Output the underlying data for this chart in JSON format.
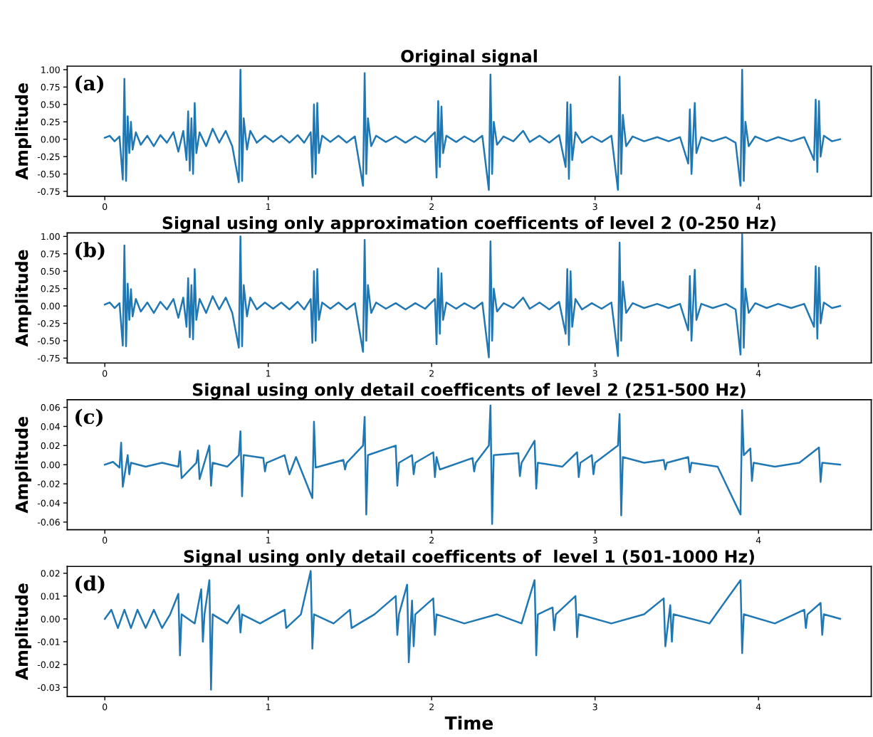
{
  "chart_data": [
    {
      "type": "line",
      "title": "Original signal",
      "ylabel": "Amplitude",
      "annotations": [
        "(a)"
      ],
      "xlim": [
        -0.23,
        4.69
      ],
      "xticks": [
        0,
        1,
        2,
        3,
        4
      ],
      "ylim": [
        -0.82,
        1.05
      ],
      "yticks": [
        {
          "value": -0.75,
          "label": "-0.75"
        },
        {
          "value": -0.5,
          "label": "-0.50"
        },
        {
          "value": -0.25,
          "label": "-0.25"
        },
        {
          "value": 0,
          "label": "0.00"
        },
        {
          "value": 0.25,
          "label": "0.25"
        },
        {
          "value": 0.5,
          "label": "0.50"
        },
        {
          "value": 0.75,
          "label": "0.75"
        },
        {
          "value": 1,
          "label": "1.00"
        }
      ],
      "series": [
        {
          "color": "#1f77b4",
          "x": [
            0,
            0.03,
            0.06,
            0.09,
            0.11,
            0.12,
            0.13,
            0.14,
            0.15,
            0.16,
            0.17,
            0.19,
            0.22,
            0.26,
            0.3,
            0.34,
            0.38,
            0.42,
            0.45,
            0.48,
            0.5,
            0.51,
            0.52,
            0.53,
            0.54,
            0.55,
            0.56,
            0.58,
            0.62,
            0.66,
            0.7,
            0.74,
            0.78,
            0.82,
            0.83,
            0.84,
            0.85,
            0.87,
            0.89,
            0.93,
            0.98,
            1.03,
            1.08,
            1.13,
            1.18,
            1.22,
            1.26,
            1.27,
            1.28,
            1.29,
            1.3,
            1.31,
            1.33,
            1.38,
            1.43,
            1.48,
            1.53,
            1.58,
            1.59,
            1.6,
            1.61,
            1.63,
            1.66,
            1.72,
            1.78,
            1.84,
            1.9,
            1.96,
            2.02,
            2.03,
            2.04,
            2.05,
            2.06,
            2.07,
            2.09,
            2.15,
            2.2,
            2.26,
            2.31,
            2.35,
            2.36,
            2.37,
            2.38,
            2.4,
            2.44,
            2.5,
            2.56,
            2.6,
            2.66,
            2.72,
            2.78,
            2.82,
            2.83,
            2.84,
            2.85,
            2.86,
            2.88,
            2.92,
            2.98,
            3.04,
            3.1,
            3.14,
            3.15,
            3.16,
            3.17,
            3.19,
            3.23,
            3.3,
            3.38,
            3.45,
            3.52,
            3.57,
            3.58,
            3.59,
            3.61,
            3.62,
            3.65,
            3.72,
            3.8,
            3.86,
            3.89,
            3.9,
            3.91,
            3.92,
            3.94,
            3.98,
            4.05,
            4.12,
            4.2,
            4.28,
            4.34,
            4.35,
            4.36,
            4.37,
            4.38,
            4.4,
            4.45,
            4.5
          ],
          "values": [
            0.02,
            0.05,
            -0.03,
            0.04,
            -0.58,
            0.87,
            -0.6,
            0.33,
            -0.2,
            0.25,
            -0.15,
            0.1,
            -0.08,
            0.05,
            -0.1,
            0.06,
            -0.05,
            0.1,
            -0.18,
            0.12,
            -0.3,
            0.4,
            -0.45,
            0.3,
            -0.5,
            0.52,
            -0.2,
            0.1,
            -0.1,
            0.15,
            -0.05,
            0.12,
            -0.1,
            -0.62,
            1.0,
            -0.6,
            0.3,
            -0.15,
            0.12,
            -0.05,
            0.05,
            -0.04,
            0.05,
            -0.05,
            0.06,
            -0.05,
            0.1,
            -0.55,
            0.5,
            -0.5,
            0.52,
            -0.2,
            0.05,
            -0.04,
            0.05,
            -0.05,
            0.04,
            -0.67,
            0.95,
            -0.5,
            0.3,
            -0.1,
            0.05,
            -0.04,
            0.04,
            -0.05,
            0.04,
            -0.04,
            0.1,
            -0.55,
            0.55,
            -0.4,
            0.47,
            -0.2,
            0.05,
            -0.04,
            0.04,
            -0.04,
            0.05,
            -0.73,
            0.93,
            -0.5,
            0.25,
            -0.08,
            0.04,
            -0.03,
            0.12,
            -0.04,
            0.05,
            -0.05,
            0.06,
            -0.4,
            0.53,
            -0.57,
            0.5,
            -0.3,
            0.1,
            -0.05,
            0.04,
            -0.04,
            0.05,
            -0.73,
            0.9,
            -0.5,
            0.35,
            -0.1,
            0.04,
            -0.03,
            0.03,
            -0.03,
            0.03,
            -0.35,
            0.43,
            -0.5,
            0.52,
            -0.2,
            0.03,
            -0.03,
            0.03,
            -0.05,
            -0.67,
            1.0,
            -0.6,
            0.25,
            -0.1,
            0.04,
            -0.03,
            0.03,
            -0.03,
            0.03,
            -0.3,
            0.57,
            -0.47,
            0.55,
            -0.25,
            0.05,
            -0.03,
            0.0
          ]
        }
      ]
    },
    {
      "type": "line",
      "title": "Signal using only approximation coefficents of level 2 (0-250 Hz)",
      "ylabel": "Amplitude",
      "annotations": [
        "(b)"
      ],
      "xlim": [
        -0.23,
        4.69
      ],
      "xticks": [
        0,
        1,
        2,
        3,
        4
      ],
      "ylim": [
        -0.82,
        1.05
      ],
      "yticks": [
        {
          "value": -0.75,
          "label": "-0.75"
        },
        {
          "value": -0.5,
          "label": "-0.50"
        },
        {
          "value": -0.25,
          "label": "-0.25"
        },
        {
          "value": 0,
          "label": "0.00"
        },
        {
          "value": 0.25,
          "label": "0.25"
        },
        {
          "value": 0.5,
          "label": "0.50"
        },
        {
          "value": 0.75,
          "label": "0.75"
        },
        {
          "value": 1,
          "label": "1.00"
        }
      ],
      "series": [
        {
          "color": "#1f77b4",
          "x": [
            0,
            0.03,
            0.06,
            0.09,
            0.11,
            0.12,
            0.13,
            0.14,
            0.15,
            0.16,
            0.17,
            0.19,
            0.22,
            0.26,
            0.3,
            0.34,
            0.38,
            0.42,
            0.45,
            0.48,
            0.5,
            0.51,
            0.52,
            0.53,
            0.54,
            0.55,
            0.56,
            0.58,
            0.62,
            0.66,
            0.7,
            0.74,
            0.78,
            0.82,
            0.83,
            0.84,
            0.85,
            0.87,
            0.89,
            0.93,
            0.98,
            1.03,
            1.08,
            1.13,
            1.18,
            1.22,
            1.26,
            1.27,
            1.28,
            1.29,
            1.3,
            1.31,
            1.33,
            1.38,
            1.43,
            1.48,
            1.53,
            1.58,
            1.59,
            1.6,
            1.61,
            1.63,
            1.66,
            1.72,
            1.78,
            1.84,
            1.9,
            1.96,
            2.02,
            2.03,
            2.04,
            2.05,
            2.06,
            2.07,
            2.09,
            2.15,
            2.2,
            2.26,
            2.31,
            2.35,
            2.36,
            2.37,
            2.38,
            2.4,
            2.44,
            2.5,
            2.56,
            2.6,
            2.66,
            2.72,
            2.78,
            2.82,
            2.83,
            2.84,
            2.85,
            2.86,
            2.88,
            2.92,
            2.98,
            3.04,
            3.1,
            3.14,
            3.15,
            3.16,
            3.17,
            3.19,
            3.23,
            3.3,
            3.38,
            3.45,
            3.52,
            3.57,
            3.58,
            3.59,
            3.61,
            3.62,
            3.65,
            3.72,
            3.8,
            3.86,
            3.89,
            3.9,
            3.91,
            3.92,
            3.94,
            3.98,
            4.05,
            4.12,
            4.2,
            4.28,
            4.34,
            4.35,
            4.36,
            4.37,
            4.38,
            4.4,
            4.45,
            4.5
          ],
          "values": [
            0.02,
            0.05,
            -0.03,
            0.04,
            -0.57,
            0.87,
            -0.58,
            0.32,
            -0.2,
            0.24,
            -0.15,
            0.1,
            -0.08,
            0.05,
            -0.1,
            0.06,
            -0.05,
            0.1,
            -0.17,
            0.12,
            -0.3,
            0.4,
            -0.45,
            0.3,
            -0.48,
            0.53,
            -0.2,
            0.1,
            -0.1,
            0.14,
            -0.05,
            0.12,
            -0.1,
            -0.6,
            1.0,
            -0.58,
            0.3,
            -0.15,
            0.12,
            -0.05,
            0.05,
            -0.04,
            0.05,
            -0.05,
            0.06,
            -0.05,
            0.1,
            -0.53,
            0.5,
            -0.5,
            0.53,
            -0.2,
            0.05,
            -0.04,
            0.05,
            -0.05,
            0.04,
            -0.66,
            0.95,
            -0.5,
            0.3,
            -0.1,
            0.05,
            -0.04,
            0.04,
            -0.05,
            0.04,
            -0.04,
            0.1,
            -0.55,
            0.54,
            -0.4,
            0.47,
            -0.2,
            0.05,
            -0.04,
            0.04,
            -0.04,
            0.05,
            -0.74,
            0.93,
            -0.5,
            0.25,
            -0.08,
            0.04,
            -0.03,
            0.12,
            -0.04,
            0.05,
            -0.05,
            0.06,
            -0.4,
            0.53,
            -0.56,
            0.5,
            -0.3,
            0.1,
            -0.05,
            0.04,
            -0.04,
            0.05,
            -0.72,
            0.91,
            -0.5,
            0.35,
            -0.1,
            0.04,
            -0.03,
            0.03,
            -0.03,
            0.03,
            -0.35,
            0.43,
            -0.5,
            0.52,
            -0.2,
            0.03,
            -0.03,
            0.03,
            -0.05,
            -0.7,
            1.03,
            -0.6,
            0.25,
            -0.1,
            0.04,
            -0.03,
            0.03,
            -0.03,
            0.03,
            -0.3,
            0.57,
            -0.47,
            0.55,
            -0.25,
            0.05,
            -0.03,
            0.0
          ]
        }
      ]
    },
    {
      "type": "line",
      "title": "Signal using only detail coefficents of level 2 (251-500 Hz)",
      "ylabel": "Amplitude",
      "annotations": [
        "(c)"
      ],
      "xlim": [
        -0.23,
        4.69
      ],
      "xticks": [
        0,
        1,
        2,
        3,
        4
      ],
      "ylim": [
        -0.068,
        0.068
      ],
      "yticks": [
        {
          "value": -0.06,
          "label": "-0.06"
        },
        {
          "value": -0.04,
          "label": "-0.04"
        },
        {
          "value": -0.02,
          "label": "-0.02"
        },
        {
          "value": 0,
          "label": "0.00"
        },
        {
          "value": 0.02,
          "label": "0.02"
        },
        {
          "value": 0.04,
          "label": "0.04"
        },
        {
          "value": 0.06,
          "label": "0.06"
        }
      ],
      "series": [
        {
          "color": "#1f77b4",
          "x": [
            0,
            0.05,
            0.09,
            0.1,
            0.11,
            0.14,
            0.15,
            0.16,
            0.25,
            0.35,
            0.45,
            0.46,
            0.47,
            0.56,
            0.57,
            0.58,
            0.64,
            0.65,
            0.66,
            0.75,
            0.82,
            0.83,
            0.84,
            0.85,
            0.97,
            0.98,
            0.99,
            1.1,
            1.13,
            1.17,
            1.27,
            1.28,
            1.29,
            1.46,
            1.47,
            1.48,
            1.58,
            1.59,
            1.6,
            1.61,
            1.78,
            1.79,
            1.8,
            1.88,
            1.89,
            1.9,
            2.01,
            2.02,
            2.03,
            2.05,
            2.25,
            2.26,
            2.27,
            2.35,
            2.36,
            2.37,
            2.38,
            2.53,
            2.54,
            2.55,
            2.63,
            2.64,
            2.65,
            2.8,
            2.89,
            2.9,
            2.91,
            2.98,
            2.99,
            3.0,
            3.14,
            3.15,
            3.16,
            3.17,
            3.3,
            3.42,
            3.43,
            3.44,
            3.57,
            3.58,
            3.59,
            3.75,
            3.89,
            3.9,
            3.91,
            3.95,
            3.96,
            3.97,
            4.1,
            4.25,
            4.37,
            4.38,
            4.39,
            4.5
          ],
          "values": [
            0.0,
            0.003,
            -0.003,
            0.023,
            -0.023,
            0.01,
            -0.01,
            0.002,
            -0.002,
            0.002,
            -0.002,
            0.014,
            -0.014,
            0.002,
            0.015,
            -0.015,
            0.02,
            -0.022,
            0.002,
            -0.002,
            0.01,
            0.035,
            -0.033,
            0.01,
            0.007,
            -0.007,
            0.002,
            0.01,
            -0.01,
            0.008,
            -0.035,
            0.045,
            -0.003,
            0.005,
            -0.005,
            0.002,
            0.02,
            0.05,
            -0.052,
            0.01,
            0.02,
            -0.022,
            0.002,
            0.01,
            -0.01,
            0.002,
            0.013,
            -0.013,
            0.008,
            -0.005,
            0.007,
            -0.007,
            0.002,
            0.02,
            0.062,
            -0.062,
            0.01,
            0.012,
            -0.012,
            0.002,
            0.025,
            -0.025,
            0.002,
            -0.002,
            0.013,
            -0.013,
            0.002,
            0.01,
            -0.01,
            0.002,
            0.02,
            0.053,
            -0.053,
            0.008,
            0.002,
            0.005,
            -0.005,
            0.002,
            0.008,
            -0.008,
            0.002,
            -0.002,
            -0.052,
            0.057,
            0.01,
            0.017,
            -0.017,
            0.002,
            -0.002,
            0.002,
            0.018,
            -0.018,
            0.002,
            0.0
          ]
        }
      ]
    },
    {
      "type": "line",
      "title": "Signal using only detail coefficents of  level 1 (501-1000 Hz)",
      "xlabel": "Time",
      "ylabel": "Amplitude",
      "annotations": [
        "(d)"
      ],
      "xlim": [
        -0.23,
        4.69
      ],
      "xticks": [
        0,
        1,
        2,
        3,
        4
      ],
      "ylim": [
        -0.034,
        0.023
      ],
      "yticks": [
        {
          "value": -0.03,
          "label": "-0.03"
        },
        {
          "value": -0.02,
          "label": "-0.02"
        },
        {
          "value": -0.01,
          "label": "-0.01"
        },
        {
          "value": 0,
          "label": "0.00"
        },
        {
          "value": 0.01,
          "label": "0.01"
        },
        {
          "value": 0.02,
          "label": "0.02"
        }
      ],
      "series": [
        {
          "color": "#1f77b4",
          "x": [
            0,
            0.04,
            0.08,
            0.12,
            0.16,
            0.2,
            0.25,
            0.3,
            0.35,
            0.4,
            0.45,
            0.46,
            0.47,
            0.55,
            0.59,
            0.6,
            0.61,
            0.64,
            0.65,
            0.66,
            0.75,
            0.82,
            0.83,
            0.84,
            0.95,
            1.1,
            1.11,
            1.2,
            1.26,
            1.27,
            1.28,
            1.4,
            1.5,
            1.51,
            1.65,
            1.78,
            1.79,
            1.8,
            1.85,
            1.86,
            1.88,
            1.89,
            1.9,
            2.01,
            2.02,
            2.03,
            2.2,
            2.4,
            2.55,
            2.63,
            2.64,
            2.65,
            2.74,
            2.75,
            2.76,
            2.88,
            2.89,
            2.9,
            3.1,
            3.3,
            3.42,
            3.43,
            3.46,
            3.47,
            3.48,
            3.7,
            3.89,
            3.9,
            3.91,
            4.1,
            4.28,
            4.29,
            4.3,
            4.38,
            4.39,
            4.4,
            4.5
          ],
          "values": [
            0.0,
            0.004,
            -0.004,
            0.004,
            -0.004,
            0.004,
            -0.004,
            0.004,
            -0.004,
            0.002,
            0.011,
            -0.016,
            0.002,
            -0.002,
            0.013,
            -0.01,
            0.002,
            0.017,
            -0.031,
            0.002,
            -0.002,
            0.006,
            -0.006,
            0.002,
            -0.002,
            0.004,
            -0.004,
            0.002,
            0.021,
            -0.013,
            0.002,
            -0.002,
            0.004,
            -0.004,
            0.002,
            0.01,
            -0.007,
            0.002,
            0.015,
            -0.019,
            0.008,
            -0.012,
            0.002,
            0.009,
            -0.007,
            0.002,
            -0.002,
            0.002,
            -0.002,
            0.017,
            -0.016,
            0.002,
            0.005,
            -0.005,
            0.002,
            0.01,
            -0.008,
            0.002,
            -0.002,
            0.002,
            0.009,
            -0.012,
            0.006,
            -0.01,
            0.002,
            -0.002,
            0.017,
            -0.015,
            0.002,
            -0.002,
            0.004,
            -0.004,
            0.002,
            0.007,
            -0.007,
            0.002,
            0.0
          ]
        }
      ]
    }
  ]
}
